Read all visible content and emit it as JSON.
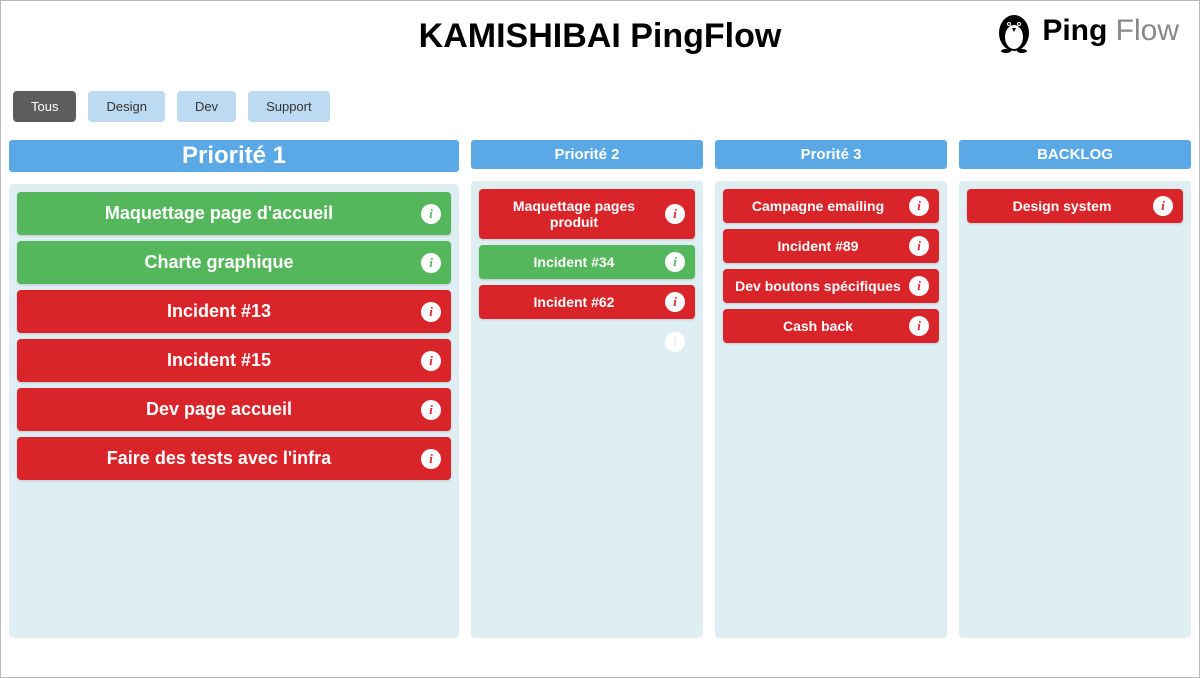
{
  "header": {
    "title": "KAMISHIBAI PingFlow",
    "logo_bold": "Ping",
    "logo_light": " Flow"
  },
  "colors": {
    "column_header": "#5aa9e6",
    "column_body": "#dfeef3",
    "card_green": "#55b75b",
    "card_red": "#d9252a",
    "filter_active_bg": "#5d5d5d",
    "filter_inactive_bg": "#bcdaf2"
  },
  "filters": [
    {
      "id": "tous",
      "label": "Tous",
      "active": true
    },
    {
      "id": "design",
      "label": "Design",
      "active": false
    },
    {
      "id": "dev",
      "label": "Dev",
      "active": false
    },
    {
      "id": "support",
      "label": "Support",
      "active": false
    }
  ],
  "columns": [
    {
      "id": "p1",
      "title": "Priorité 1",
      "size": "wide",
      "cards": [
        {
          "label": "Maquettage page d'accueil",
          "status": "green"
        },
        {
          "label": "Charte graphique",
          "status": "green"
        },
        {
          "label": "Incident #13",
          "status": "red"
        },
        {
          "label": "Incident #15",
          "status": "red"
        },
        {
          "label": "Dev page accueil",
          "status": "red"
        },
        {
          "label": "Faire des tests avec l'infra",
          "status": "red"
        }
      ],
      "phantom_after": false
    },
    {
      "id": "p2",
      "title": "Priorité 2",
      "size": "narrow",
      "cards": [
        {
          "label": "Maquettage pages produit",
          "status": "red"
        },
        {
          "label": "Incident #34",
          "status": "green"
        },
        {
          "label": "Incident #62",
          "status": "red"
        }
      ],
      "phantom_after": true
    },
    {
      "id": "p3",
      "title": "Prorité 3",
      "size": "narrow",
      "cards": [
        {
          "label": "Campagne emailing",
          "status": "red"
        },
        {
          "label": "Incident #89",
          "status": "red"
        },
        {
          "label": "Dev boutons spécifiques",
          "status": "red"
        },
        {
          "label": "Cash back",
          "status": "red"
        }
      ],
      "phantom_after": false
    },
    {
      "id": "backlog",
      "title": "BACKLOG",
      "size": "narrow",
      "cards": [
        {
          "label": "Design system",
          "status": "red"
        }
      ],
      "phantom_after": false
    }
  ]
}
